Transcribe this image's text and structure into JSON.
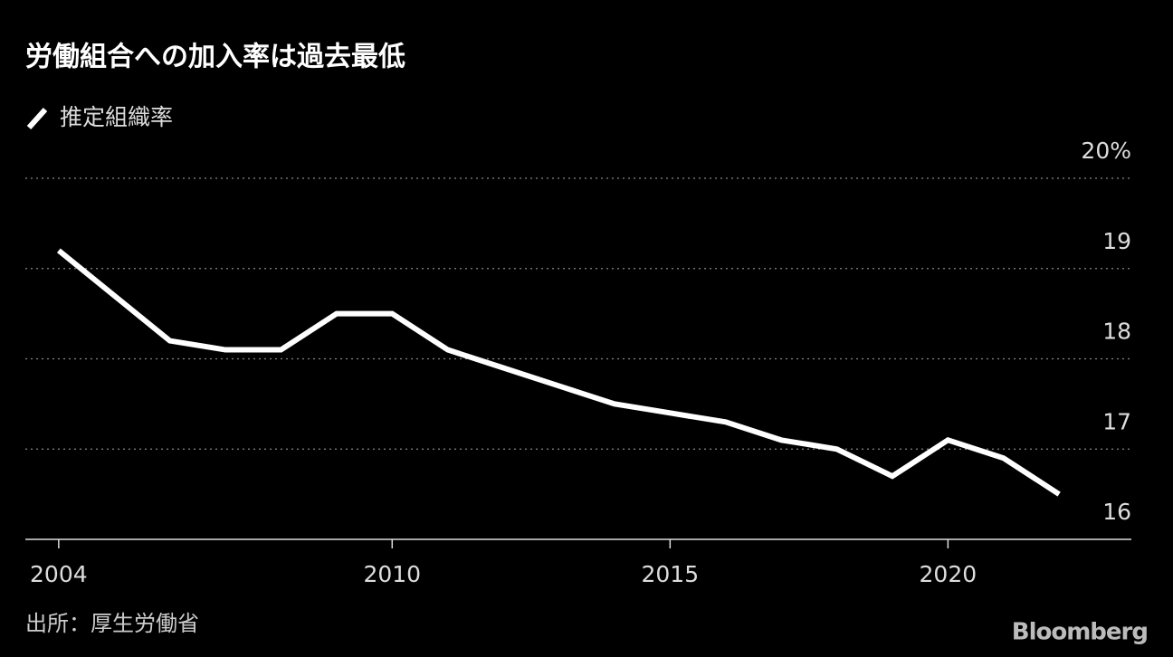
{
  "chart_data": {
    "type": "line",
    "title": "労働組合への加入率は過去最低",
    "x": [
      2004,
      2005,
      2006,
      2007,
      2008,
      2009,
      2010,
      2011,
      2012,
      2013,
      2014,
      2015,
      2016,
      2017,
      2018,
      2019,
      2020,
      2021,
      2022
    ],
    "series": [
      {
        "name": "推定組織率",
        "color": "#ffffff",
        "values": [
          19.2,
          18.7,
          18.2,
          18.1,
          18.1,
          18.5,
          18.5,
          18.1,
          17.9,
          17.7,
          17.5,
          17.4,
          17.3,
          17.1,
          17.0,
          16.7,
          17.1,
          16.9,
          16.5
        ]
      }
    ],
    "xlim": [
      2003.4,
      2023.3
    ],
    "xticks": [
      2004,
      2010,
      2015,
      2020
    ],
    "ylim": [
      16,
      20
    ],
    "yticks": [
      16,
      17,
      18,
      19,
      {
        "value": 20,
        "label": "20%"
      }
    ],
    "grid": true,
    "source": "出所：厚生労働省",
    "brand": "Bloomberg"
  }
}
